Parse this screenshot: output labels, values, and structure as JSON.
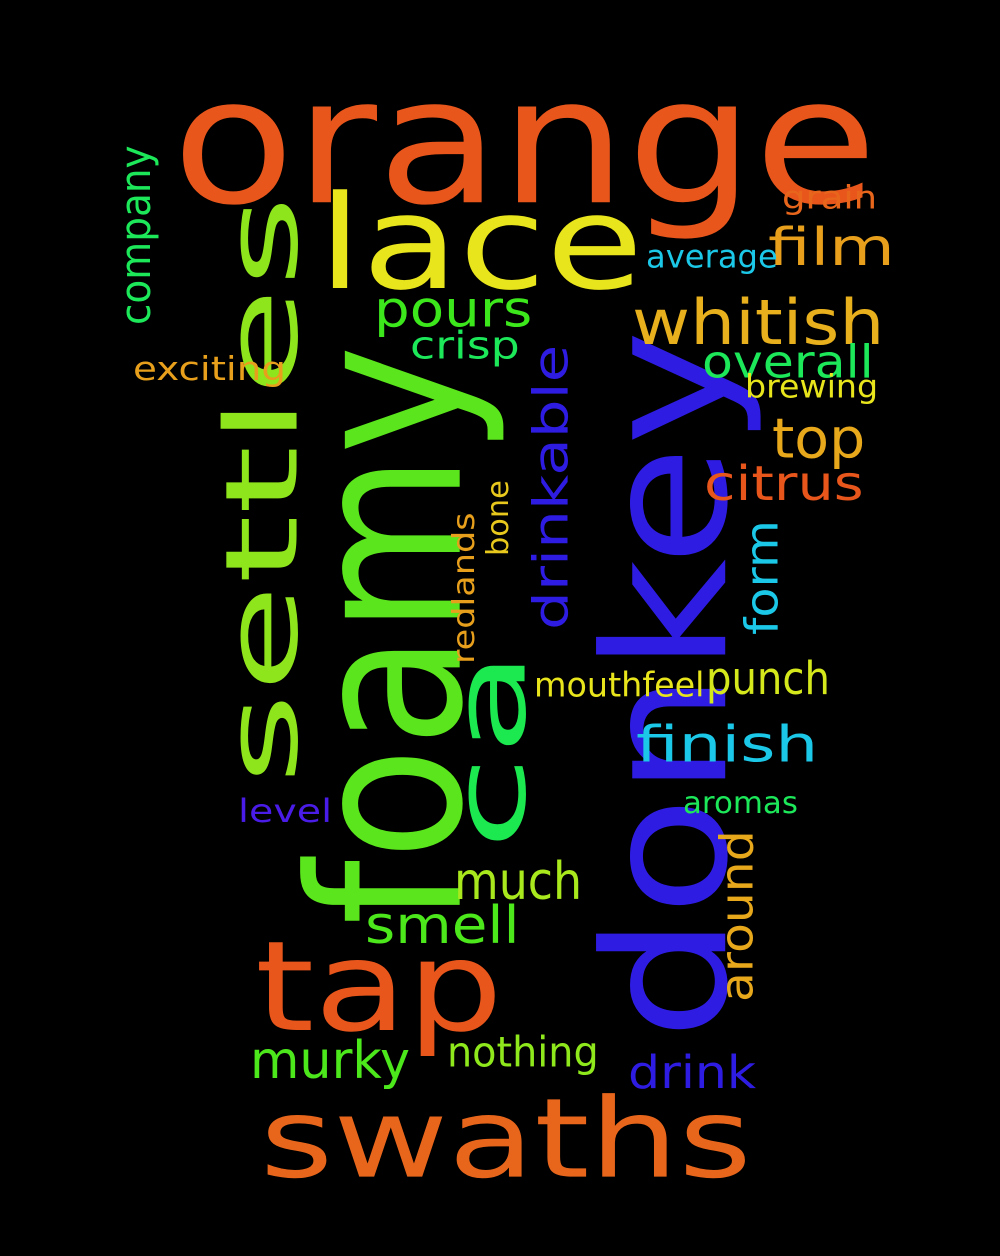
{
  "words": [
    {
      "text": "orange",
      "color": "#e8561c",
      "rotation": "horizontal"
    },
    {
      "text": "donkey",
      "color": "#2e1ce3",
      "rotation": "vertical"
    },
    {
      "text": "foamy",
      "color": "#5ae51c",
      "rotation": "vertical"
    },
    {
      "text": "settles",
      "color": "#8ee51c",
      "rotation": "vertical"
    },
    {
      "text": "swaths",
      "color": "#e8661c",
      "rotation": "horizontal"
    },
    {
      "text": "lace",
      "color": "#e8e51c",
      "rotation": "horizontal"
    },
    {
      "text": "tap",
      "color": "#e8561c",
      "rotation": "horizontal"
    },
    {
      "text": "ca",
      "color": "#1ce850",
      "rotation": "vertical"
    },
    {
      "text": "whitish",
      "color": "#e8b01c",
      "rotation": "horizontal"
    },
    {
      "text": "pours",
      "color": "#3ce81c",
      "rotation": "horizontal"
    },
    {
      "text": "film",
      "color": "#e8a01c",
      "rotation": "horizontal"
    },
    {
      "text": "drinkable",
      "color": "#2e1ce3",
      "rotation": "vertical"
    },
    {
      "text": "company",
      "color": "#1ce85a",
      "rotation": "vertical"
    },
    {
      "text": "overall",
      "color": "#1ce85a",
      "rotation": "horizontal"
    },
    {
      "text": "top",
      "color": "#e8a81c",
      "rotation": "horizontal"
    },
    {
      "text": "citrus",
      "color": "#e8561c",
      "rotation": "horizontal"
    },
    {
      "text": "form",
      "color": "#1cc8e8",
      "rotation": "vertical"
    },
    {
      "text": "finish",
      "color": "#1cc8e8",
      "rotation": "horizontal"
    },
    {
      "text": "punch",
      "color": "#d4e81c",
      "rotation": "horizontal"
    },
    {
      "text": "much",
      "color": "#a8e81c",
      "rotation": "horizontal"
    },
    {
      "text": "smell",
      "color": "#4ce81c",
      "rotation": "horizontal"
    },
    {
      "text": "around",
      "color": "#e8a81c",
      "rotation": "vertical"
    },
    {
      "text": "murky",
      "color": "#4ce81c",
      "rotation": "horizontal"
    },
    {
      "text": "nothing",
      "color": "#8ee81c",
      "rotation": "horizontal"
    },
    {
      "text": "drink",
      "color": "#2e1ce3",
      "rotation": "horizontal"
    },
    {
      "text": "crisp",
      "color": "#1ce85a",
      "rotation": "horizontal"
    },
    {
      "text": "average",
      "color": "#1cc8e8",
      "rotation": "horizontal"
    },
    {
      "text": "grain",
      "color": "#e8661c",
      "rotation": "horizontal"
    },
    {
      "text": "brewing",
      "color": "#e8e51c",
      "rotation": "horizontal"
    },
    {
      "text": "exciting",
      "color": "#e8a01c",
      "rotation": "horizontal"
    },
    {
      "text": "redlands",
      "color": "#e8a01c",
      "rotation": "vertical"
    },
    {
      "text": "bone",
      "color": "#e8c81c",
      "rotation": "vertical"
    },
    {
      "text": "mouthfeel",
      "color": "#e8e51c",
      "rotation": "horizontal"
    },
    {
      "text": "level",
      "color": "#4a1ce8",
      "rotation": "horizontal"
    },
    {
      "text": "aromas",
      "color": "#1ce85a",
      "rotation": "horizontal"
    }
  ]
}
